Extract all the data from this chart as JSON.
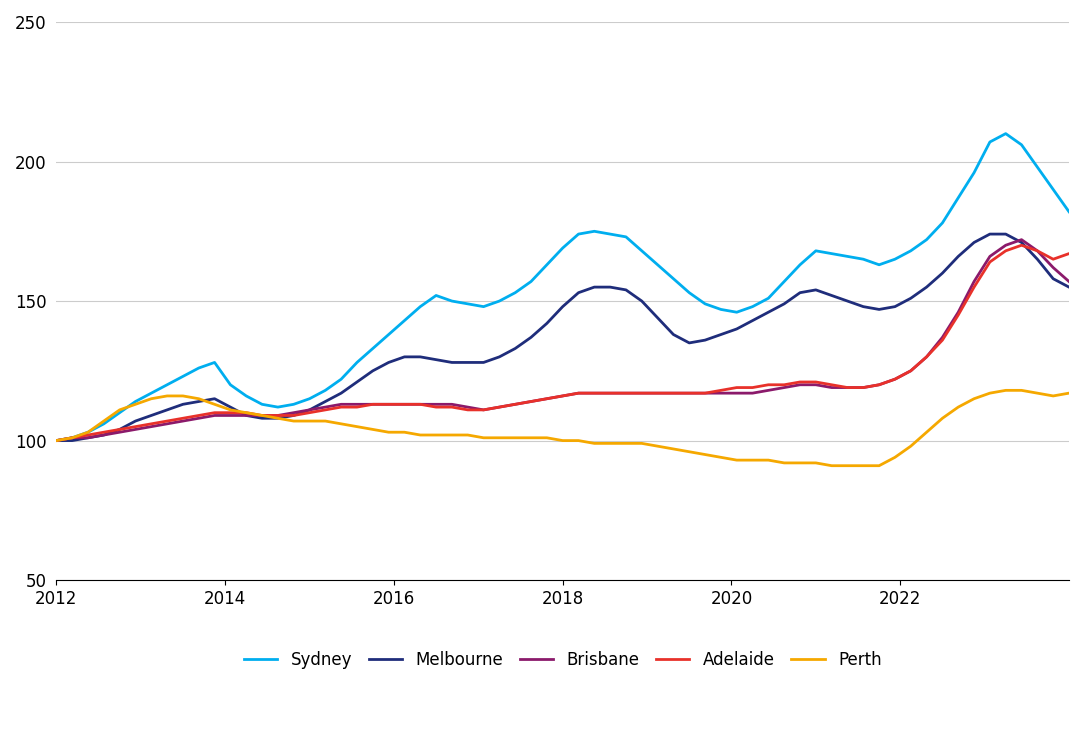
{
  "title": "",
  "ylim": [
    50,
    250
  ],
  "yticks": [
    50,
    100,
    150,
    200,
    250
  ],
  "xlabel": "",
  "ylabel": "",
  "background_color": "#ffffff",
  "grid_color": "#cccccc",
  "legend_labels": [
    "Sydney",
    "Melbourne",
    "Brisbane",
    "Adelaide",
    "Perth"
  ],
  "colors": {
    "Sydney": "#00AEEF",
    "Melbourne": "#1F2D7B",
    "Brisbane": "#8B1A6B",
    "Adelaide": "#E8312A",
    "Perth": "#F5A800"
  },
  "series": {
    "Sydney": [
      100,
      101,
      103,
      106,
      110,
      114,
      117,
      120,
      123,
      126,
      128,
      120,
      116,
      113,
      112,
      113,
      115,
      118,
      122,
      128,
      133,
      138,
      143,
      148,
      152,
      150,
      149,
      148,
      150,
      153,
      157,
      163,
      169,
      174,
      175,
      174,
      173,
      168,
      163,
      158,
      153,
      149,
      147,
      146,
      148,
      151,
      157,
      163,
      168,
      167,
      166,
      165,
      163,
      165,
      168,
      172,
      178,
      187,
      196,
      207,
      210,
      206,
      198,
      190,
      182
    ],
    "Melbourne": [
      100,
      100,
      101,
      102,
      104,
      107,
      109,
      111,
      113,
      114,
      115,
      112,
      109,
      108,
      108,
      109,
      111,
      114,
      117,
      121,
      125,
      128,
      130,
      130,
      129,
      128,
      128,
      128,
      130,
      133,
      137,
      142,
      148,
      153,
      155,
      155,
      154,
      150,
      144,
      138,
      135,
      136,
      138,
      140,
      143,
      146,
      149,
      153,
      154,
      152,
      150,
      148,
      147,
      148,
      151,
      155,
      160,
      166,
      171,
      174,
      174,
      171,
      165,
      158,
      155
    ],
    "Brisbane": [
      100,
      101,
      101,
      102,
      103,
      104,
      105,
      106,
      107,
      108,
      109,
      109,
      109,
      109,
      109,
      110,
      111,
      112,
      113,
      113,
      113,
      113,
      113,
      113,
      113,
      113,
      112,
      111,
      112,
      113,
      114,
      115,
      116,
      117,
      117,
      117,
      117,
      117,
      117,
      117,
      117,
      117,
      117,
      117,
      117,
      118,
      119,
      120,
      120,
      119,
      119,
      119,
      120,
      122,
      125,
      130,
      137,
      146,
      157,
      166,
      170,
      172,
      168,
      162,
      157
    ],
    "Adelaide": [
      100,
      101,
      102,
      103,
      104,
      105,
      106,
      107,
      108,
      109,
      110,
      110,
      110,
      109,
      109,
      109,
      110,
      111,
      112,
      112,
      113,
      113,
      113,
      113,
      112,
      112,
      111,
      111,
      112,
      113,
      114,
      115,
      116,
      117,
      117,
      117,
      117,
      117,
      117,
      117,
      117,
      117,
      118,
      119,
      119,
      120,
      120,
      121,
      121,
      120,
      119,
      119,
      120,
      122,
      125,
      130,
      136,
      145,
      155,
      164,
      168,
      170,
      168,
      165,
      167
    ],
    "Perth": [
      100,
      101,
      103,
      107,
      111,
      113,
      115,
      116,
      116,
      115,
      113,
      111,
      110,
      109,
      108,
      107,
      107,
      107,
      106,
      105,
      104,
      103,
      103,
      102,
      102,
      102,
      102,
      101,
      101,
      101,
      101,
      101,
      100,
      100,
      99,
      99,
      99,
      99,
      98,
      97,
      96,
      95,
      94,
      93,
      93,
      93,
      92,
      92,
      92,
      91,
      91,
      91,
      91,
      94,
      98,
      103,
      108,
      112,
      115,
      117,
      118,
      118,
      117,
      116,
      117
    ]
  },
  "line_width": 2.0
}
